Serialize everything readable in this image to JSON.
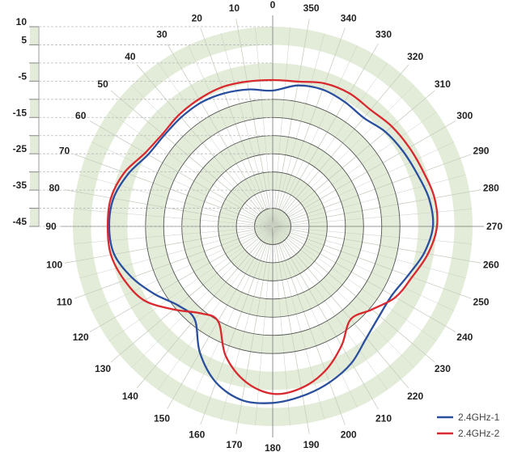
{
  "chart_data": {
    "type": "polar-line",
    "title": "",
    "center": [
      337,
      280
    ],
    "radial_axis": {
      "unit": "dB",
      "range": [
        -45,
        10
      ],
      "tick_labels": [
        "10",
        "5",
        "-5",
        "-15",
        "-25",
        "-35",
        "-45"
      ],
      "tick_values": [
        10,
        5,
        0,
        -5,
        -10,
        -15,
        -20,
        -25,
        -30,
        -35,
        -40,
        -45
      ]
    },
    "angular_axis": {
      "unit": "degrees",
      "direction": "counterclockwise",
      "zero_at": "top",
      "tick_labels": [
        "0",
        "10",
        "20",
        "30",
        "40",
        "50",
        "60",
        "70",
        "80",
        "90",
        "100",
        "110",
        "120",
        "130",
        "140",
        "150",
        "160",
        "170",
        "180",
        "190",
        "200",
        "210",
        "220",
        "230",
        "240",
        "250",
        "260",
        "270",
        "280",
        "290",
        "300",
        "310",
        "320",
        "330",
        "340",
        "350"
      ]
    },
    "angles": [
      0,
      10,
      20,
      30,
      40,
      50,
      60,
      70,
      80,
      90,
      100,
      110,
      120,
      130,
      140,
      150,
      160,
      170,
      180,
      190,
      200,
      210,
      220,
      230,
      240,
      250,
      260,
      270,
      280,
      290,
      300,
      310,
      320,
      330,
      340,
      350
    ],
    "series": [
      {
        "name": "2.4GHz-1",
        "color": "#2a4f9e",
        "values": [
          -7.6,
          -6.7,
          -6.0,
          -5.6,
          -5.8,
          -6.0,
          -5.4,
          -2.7,
          -0.5,
          0.0,
          -0.7,
          -3.8,
          -7.6,
          -11.1,
          -11.6,
          -4.9,
          0.7,
          3.6,
          3.6,
          2.4,
          0.7,
          -1.6,
          -4.9,
          -6.7,
          -7.1,
          -5.4,
          -2.7,
          -0.9,
          -1.3,
          -2.7,
          -3.6,
          -4.5,
          -6.0,
          -5.4,
          -4.9,
          -5.6
        ]
      },
      {
        "name": "2.4GHz-2",
        "color": "#d9282e",
        "values": [
          -4.7,
          -4.5,
          -4.2,
          -4.5,
          -4.9,
          -5.4,
          -4.5,
          -1.6,
          0.2,
          0.4,
          0.2,
          -1.6,
          -4.2,
          -9.4,
          -13.8,
          -14.9,
          -7.1,
          -1.6,
          1.1,
          0.2,
          -2.7,
          -7.1,
          -11.6,
          -9.4,
          -6.0,
          -4.2,
          -1.6,
          0.2,
          0.2,
          -0.9,
          -1.6,
          -2.2,
          -3.1,
          -2.7,
          -3.1,
          -4.5
        ]
      }
    ],
    "legend": {
      "position": "bottom-right"
    },
    "grid": true
  },
  "legend": {
    "items": [
      {
        "label": "2.4GHz-1",
        "color": "#2a4f9e"
      },
      {
        "label": "2.4GHz-2",
        "color": "#d9282e"
      }
    ]
  },
  "colors": {
    "band": "#e3ecd8",
    "ring_line": "#555555",
    "spoke": "#c8cfc0"
  }
}
